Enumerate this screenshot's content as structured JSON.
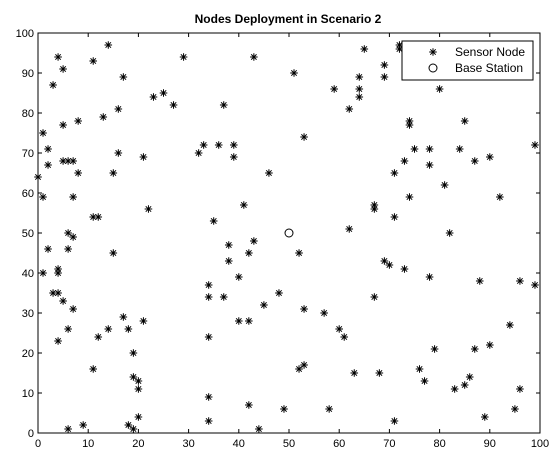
{
  "chart_data": {
    "type": "scatter",
    "title": "Nodes Deployment in Scenario 2",
    "xlim": [
      0,
      100
    ],
    "ylim": [
      0,
      100
    ],
    "x_ticks": [
      "0",
      "10",
      "20",
      "30",
      "40",
      "50",
      "60",
      "70",
      "80",
      "90",
      "100"
    ],
    "y_ticks": [
      "0",
      "10",
      "20",
      "30",
      "40",
      "50",
      "60",
      "70",
      "80",
      "90",
      "100"
    ],
    "grid": false,
    "legend_position": "top-right",
    "series": [
      {
        "name": "Sensor Node",
        "marker": "asterisk",
        "color": "#000000",
        "points": [
          [
            0,
            64
          ],
          [
            1,
            59
          ],
          [
            1,
            75
          ],
          [
            2,
            67
          ],
          [
            2,
            71
          ],
          [
            1,
            40
          ],
          [
            2,
            46
          ],
          [
            3,
            35
          ],
          [
            4,
            35
          ],
          [
            4,
            23
          ],
          [
            4,
            40
          ],
          [
            4,
            41
          ],
          [
            5,
            33
          ],
          [
            5,
            91
          ],
          [
            5,
            77
          ],
          [
            4,
            94
          ],
          [
            3,
            87
          ],
          [
            6,
            46
          ],
          [
            6,
            50
          ],
          [
            6,
            26
          ],
          [
            7,
            68
          ],
          [
            5,
            68
          ],
          [
            6,
            68
          ],
          [
            7,
            49
          ],
          [
            7,
            59
          ],
          [
            8,
            78
          ],
          [
            7,
            31
          ],
          [
            8,
            65
          ],
          [
            6,
            1
          ],
          [
            9,
            2
          ],
          [
            11,
            93
          ],
          [
            11,
            54
          ],
          [
            12,
            54
          ],
          [
            11,
            16
          ],
          [
            12,
            24
          ],
          [
            13,
            79
          ],
          [
            14,
            97
          ],
          [
            14,
            26
          ],
          [
            15,
            45
          ],
          [
            15,
            65
          ],
          [
            16,
            81
          ],
          [
            16,
            70
          ],
          [
            17,
            29
          ],
          [
            17,
            89
          ],
          [
            18,
            26
          ],
          [
            18,
            2
          ],
          [
            19,
            1
          ],
          [
            19,
            20
          ],
          [
            19,
            14
          ],
          [
            20,
            13
          ],
          [
            20,
            11
          ],
          [
            20,
            4
          ],
          [
            21,
            28
          ],
          [
            21,
            69
          ],
          [
            22,
            56
          ],
          [
            23,
            84
          ],
          [
            25,
            85
          ],
          [
            27,
            82
          ],
          [
            29,
            94
          ],
          [
            32,
            70
          ],
          [
            33,
            72
          ],
          [
            34,
            3
          ],
          [
            34,
            24
          ],
          [
            34,
            34
          ],
          [
            34,
            37
          ],
          [
            34,
            9
          ],
          [
            35,
            53
          ],
          [
            36,
            72
          ],
          [
            37,
            82
          ],
          [
            37,
            34
          ],
          [
            38,
            47
          ],
          [
            38,
            43
          ],
          [
            39,
            69
          ],
          [
            39,
            72
          ],
          [
            40,
            28
          ],
          [
            40,
            39
          ],
          [
            41,
            57
          ],
          [
            42,
            7
          ],
          [
            42,
            28
          ],
          [
            42,
            45
          ],
          [
            43,
            48
          ],
          [
            43,
            94
          ],
          [
            44,
            1
          ],
          [
            45,
            32
          ],
          [
            46,
            65
          ],
          [
            48,
            35
          ],
          [
            49,
            6
          ],
          [
            51,
            90
          ],
          [
            52,
            45
          ],
          [
            52,
            16
          ],
          [
            53,
            17
          ],
          [
            53,
            74
          ],
          [
            53,
            31
          ],
          [
            57,
            30
          ],
          [
            58,
            6
          ],
          [
            59,
            86
          ],
          [
            60,
            26
          ],
          [
            61,
            24
          ],
          [
            62,
            81
          ],
          [
            62,
            51
          ],
          [
            63,
            15
          ],
          [
            64,
            84
          ],
          [
            64,
            86
          ],
          [
            64,
            89
          ],
          [
            65,
            96
          ],
          [
            67,
            57
          ],
          [
            67,
            56
          ],
          [
            67,
            34
          ],
          [
            68,
            15
          ],
          [
            69,
            89
          ],
          [
            69,
            92
          ],
          [
            69,
            43
          ],
          [
            70,
            42
          ],
          [
            71,
            65
          ],
          [
            71,
            54
          ],
          [
            71,
            3
          ],
          [
            72,
            97
          ],
          [
            72,
            96
          ],
          [
            73,
            41
          ],
          [
            73,
            68
          ],
          [
            74,
            78
          ],
          [
            74,
            77
          ],
          [
            74,
            59
          ],
          [
            75,
            71
          ],
          [
            76,
            16
          ],
          [
            77,
            13
          ],
          [
            78,
            71
          ],
          [
            78,
            67
          ],
          [
            78,
            39
          ],
          [
            79,
            21
          ],
          [
            80,
            86
          ],
          [
            81,
            62
          ],
          [
            82,
            50
          ],
          [
            83,
            11
          ],
          [
            84,
            71
          ],
          [
            85,
            78
          ],
          [
            85,
            12
          ],
          [
            86,
            14
          ],
          [
            87,
            68
          ],
          [
            87,
            21
          ],
          [
            88,
            38
          ],
          [
            89,
            4
          ],
          [
            90,
            22
          ],
          [
            90,
            69
          ],
          [
            92,
            59
          ],
          [
            94,
            27
          ],
          [
            95,
            6
          ],
          [
            96,
            11
          ],
          [
            96,
            38
          ],
          [
            99,
            37
          ],
          [
            99,
            72
          ]
        ]
      },
      {
        "name": "Base Station",
        "marker": "circle",
        "color": "#000000",
        "points": [
          [
            50,
            50
          ]
        ]
      }
    ]
  }
}
